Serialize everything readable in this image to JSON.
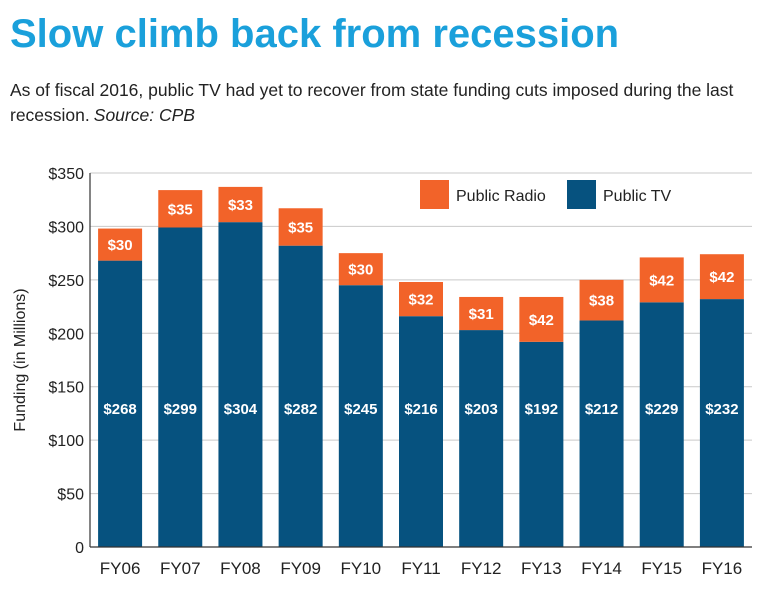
{
  "title": "Slow climb back from recession",
  "subtitle": "As of fiscal 2016, public TV had yet to recover from state funding cuts imposed during the last recession.",
  "source": "Source: CPB",
  "colors": {
    "public_tv": "#06527f",
    "public_radio": "#f26329",
    "grid": "#c9c9c9",
    "title": "#1aa0db",
    "text": "#222222",
    "label": "#ffffff"
  },
  "chart_data": {
    "type": "bar",
    "stacked": true,
    "categories": [
      "FY06",
      "FY07",
      "FY08",
      "FY09",
      "FY10",
      "FY11",
      "FY12",
      "FY13",
      "FY14",
      "FY15",
      "FY16"
    ],
    "series": [
      {
        "name": "Public TV",
        "values": [
          268,
          299,
          304,
          282,
          245,
          216,
          203,
          192,
          212,
          229,
          232
        ],
        "labels": [
          "$268",
          "$299",
          "$304",
          "$282",
          "$245",
          "$216",
          "$203",
          "$192",
          "$212",
          "$229",
          "$232"
        ]
      },
      {
        "name": "Public Radio",
        "values": [
          30,
          35,
          33,
          35,
          30,
          32,
          31,
          42,
          38,
          42,
          42
        ],
        "labels": [
          "$30",
          "$35",
          "$33",
          "$35",
          "$30",
          "$32",
          "$31",
          "$42",
          "$38",
          "$42",
          "$42"
        ]
      }
    ],
    "ylabel": "Funding (in Millions)",
    "ylim": [
      0,
      350
    ],
    "yticks": [
      0,
      50,
      100,
      150,
      200,
      250,
      300,
      350
    ],
    "ytick_labels": [
      "0",
      "$50",
      "$100",
      "$150",
      "$200",
      "$250",
      "$300",
      "$350"
    ],
    "legend": {
      "placement": "top-right",
      "entries": [
        "Public Radio",
        "Public TV"
      ]
    },
    "grid": true
  }
}
